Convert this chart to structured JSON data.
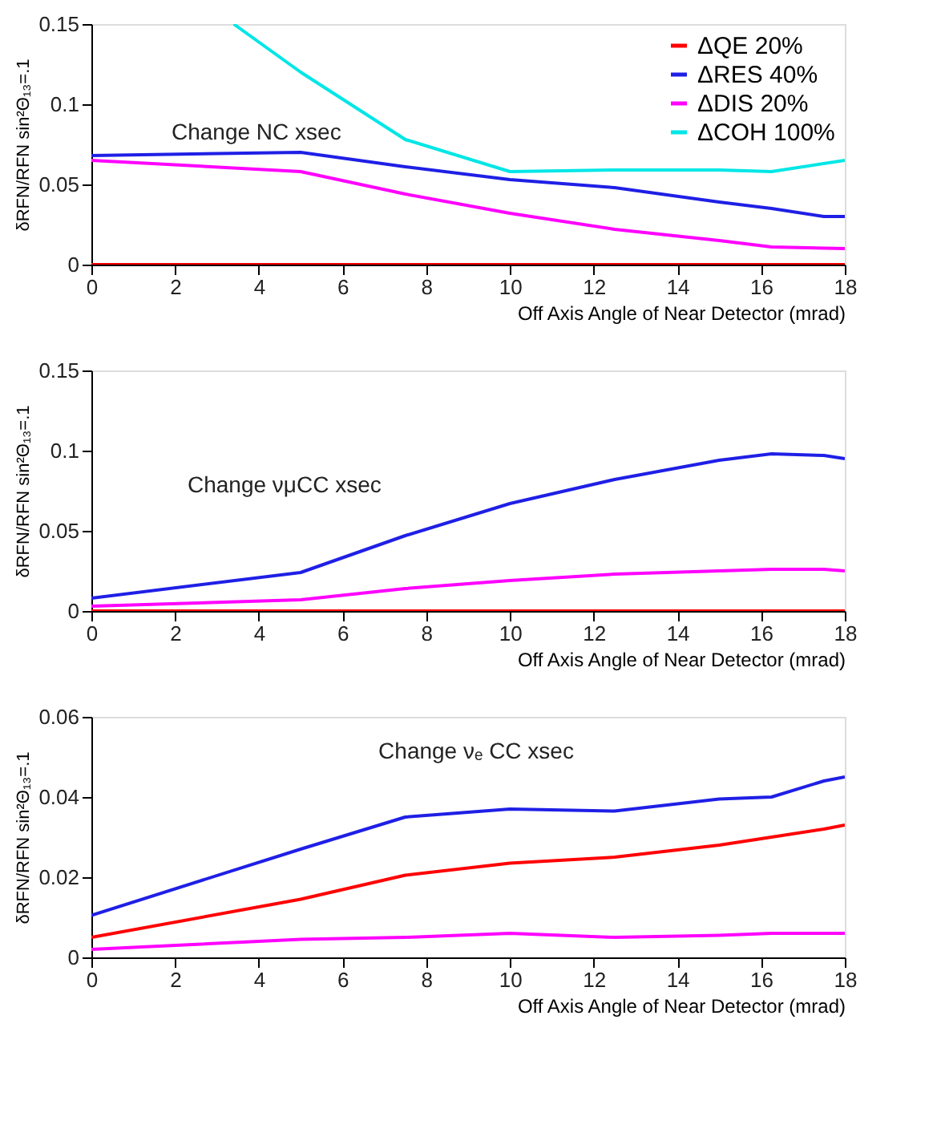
{
  "chart_data": [
    {
      "type": "line",
      "xlabel": "Off Axis Angle of Near Detector (mrad)",
      "ylabel": "δRFN/RFN sin²Θ₁₃=.1",
      "annotations": [
        "Change NC xsec"
      ],
      "xlim": [
        0,
        18
      ],
      "xticks": [
        0,
        2,
        4,
        6,
        8,
        10,
        12,
        14,
        16,
        18
      ],
      "ylim": [
        0,
        0.15
      ],
      "yticks": [
        0,
        0.05,
        0.1,
        0.15
      ],
      "grid": false,
      "legend": "top right",
      "series": [
        {
          "name": "ΔQE 20%",
          "color": "#ff0000",
          "x": [
            0,
            5,
            10,
            15,
            18
          ],
          "values": [
            0,
            0,
            0,
            0,
            0
          ]
        },
        {
          "name": "ΔRES 40%",
          "color": "#1f1fe6",
          "x": [
            0,
            5,
            7.5,
            10,
            12.5,
            15,
            16.25,
            17.5,
            18
          ],
          "values": [
            0.068,
            0.07,
            0.061,
            0.053,
            0.048,
            0.039,
            0.035,
            0.03,
            0.03
          ]
        },
        {
          "name": "ΔDIS 20%",
          "color": "#ff00ff",
          "x": [
            0,
            5,
            7.5,
            10,
            12.5,
            15,
            16.25,
            18
          ],
          "values": [
            0.065,
            0.058,
            0.044,
            0.032,
            0.022,
            0.015,
            0.011,
            0.01
          ]
        },
        {
          "name": "ΔCOH 100%",
          "color": "#00e6e6",
          "x": [
            3.4,
            5,
            7.5,
            10,
            12.5,
            15,
            16.25,
            18
          ],
          "values": [
            0.15,
            0.12,
            0.078,
            0.058,
            0.059,
            0.059,
            0.058,
            0.065
          ]
        }
      ]
    },
    {
      "type": "line",
      "xlabel": "Off Axis Angle of Near Detector (mrad)",
      "ylabel": "δRFN/RFN sin²Θ₁₃=.1",
      "annotations": [
        "Change νμCC xsec"
      ],
      "xlim": [
        0,
        18
      ],
      "xticks": [
        0,
        2,
        4,
        6,
        8,
        10,
        12,
        14,
        16,
        18
      ],
      "ylim": [
        0,
        0.15
      ],
      "yticks": [
        0,
        0.05,
        0.1,
        0.15
      ],
      "grid": false,
      "series": [
        {
          "color": "#ff0000",
          "x": [
            0,
            5,
            10,
            15,
            18
          ],
          "values": [
            0,
            0,
            0,
            0,
            0
          ]
        },
        {
          "color": "#1f1fe6",
          "x": [
            0,
            5,
            7.5,
            10,
            12.5,
            15,
            16.25,
            17.5,
            18
          ],
          "values": [
            0.008,
            0.024,
            0.047,
            0.067,
            0.082,
            0.094,
            0.098,
            0.097,
            0.095
          ]
        },
        {
          "color": "#ff00ff",
          "x": [
            0,
            5,
            7.5,
            10,
            12.5,
            15,
            16.25,
            17.5,
            18
          ],
          "values": [
            0.003,
            0.007,
            0.014,
            0.019,
            0.023,
            0.025,
            0.026,
            0.026,
            0.025
          ]
        }
      ]
    },
    {
      "type": "line",
      "xlabel": "Off Axis Angle of Near Detector (mrad)",
      "ylabel": "δRFN/RFN sin²Θ₁₃=.1",
      "annotations": [
        "Change νₑ CC xsec"
      ],
      "xlim": [
        0,
        18
      ],
      "xticks": [
        0,
        2,
        4,
        6,
        8,
        10,
        12,
        14,
        16,
        18
      ],
      "ylim": [
        0,
        0.06
      ],
      "yticks": [
        0,
        0.02,
        0.04,
        0.06
      ],
      "grid": false,
      "series": [
        {
          "color": "#ff0000",
          "x": [
            0,
            5,
            7.5,
            10,
            12.5,
            15,
            16.25,
            17.5,
            18
          ],
          "values": [
            0.005,
            0.0145,
            0.0205,
            0.0235,
            0.025,
            0.028,
            0.03,
            0.032,
            0.033
          ]
        },
        {
          "color": "#1f1fe6",
          "x": [
            0,
            5,
            7.5,
            10,
            12.5,
            15,
            16.25,
            17.5,
            18
          ],
          "values": [
            0.0105,
            0.027,
            0.035,
            0.037,
            0.0365,
            0.0395,
            0.04,
            0.044,
            0.045
          ]
        },
        {
          "color": "#ff00ff",
          "x": [
            0,
            5,
            7.5,
            10,
            12.5,
            15,
            16.25,
            18
          ],
          "values": [
            0.002,
            0.0045,
            0.005,
            0.006,
            0.005,
            0.0055,
            0.006,
            0.006
          ]
        }
      ]
    }
  ]
}
